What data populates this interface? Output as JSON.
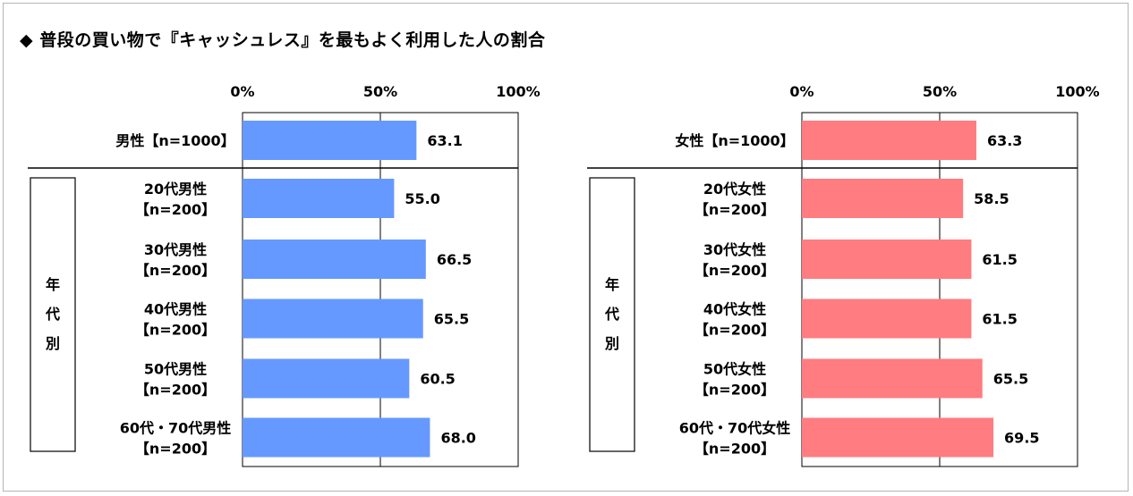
{
  "title": "◆ 普段の買い物で『キャッシュレス』を最もよく利用した人の割合",
  "chart_data": [
    {
      "type": "bar",
      "orientation": "horizontal",
      "xlim": [
        0,
        100
      ],
      "ticks": [
        "0%",
        "50%",
        "100%"
      ],
      "group_label": [
        "年",
        "代",
        "別"
      ],
      "color": "#6699FF",
      "categories": [
        [
          "男性【n=1000】"
        ],
        [
          "20代男性",
          "【n=200】"
        ],
        [
          "30代男性",
          "【n=200】"
        ],
        [
          "40代男性",
          "【n=200】"
        ],
        [
          "50代男性",
          "【n=200】"
        ],
        [
          "60代・70代男性",
          "【n=200】"
        ]
      ],
      "values": [
        63.1,
        55.0,
        66.5,
        65.5,
        60.5,
        68.0
      ],
      "value_labels": [
        "63.1",
        "55.0",
        "66.5",
        "65.5",
        "60.5",
        "68.0"
      ]
    },
    {
      "type": "bar",
      "orientation": "horizontal",
      "xlim": [
        0,
        100
      ],
      "ticks": [
        "0%",
        "50%",
        "100%"
      ],
      "group_label": [
        "年",
        "代",
        "別"
      ],
      "color": "#FF7C80",
      "categories": [
        [
          "女性【n=1000】"
        ],
        [
          "20代女性",
          "【n=200】"
        ],
        [
          "30代女性",
          "【n=200】"
        ],
        [
          "40代女性",
          "【n=200】"
        ],
        [
          "50代女性",
          "【n=200】"
        ],
        [
          "60代・70代女性",
          "【n=200】"
        ]
      ],
      "values": [
        63.3,
        58.5,
        61.5,
        61.5,
        65.5,
        69.5
      ],
      "value_labels": [
        "63.3",
        "58.5",
        "61.5",
        "61.5",
        "65.5",
        "69.5"
      ]
    }
  ]
}
